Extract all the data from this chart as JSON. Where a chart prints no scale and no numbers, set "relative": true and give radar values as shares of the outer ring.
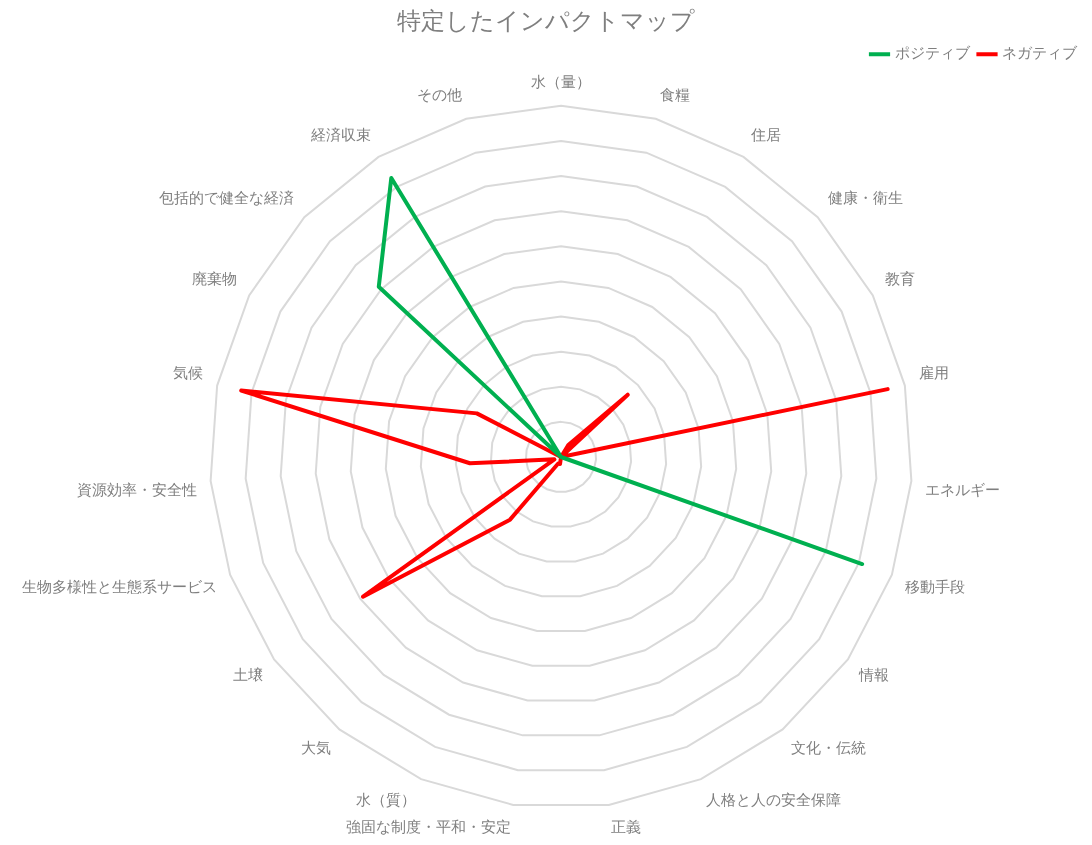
{
  "chart_data": {
    "type": "radar",
    "title": "特定したインパクトマップ",
    "relative": true,
    "legend": "top right",
    "marker": "none",
    "grid": true,
    "categories": [
      "水（量）",
      "食糧",
      "住居",
      "健康・衛生",
      "教育",
      "雇用",
      "エネルギー",
      "移動手段",
      "情報",
      "文化・伝統",
      "人格と人の安全保障",
      "正義",
      "強固な制度・平和・安定",
      "水（質）",
      "大気",
      "土壌",
      "生物多様性と生態系サービス",
      "資源効率・安全性",
      "気候",
      "廃棄物",
      "包括的で健全な経済",
      "経済収束",
      "その他"
    ],
    "series": [
      {
        "name": "ポジティブ",
        "color": "#00b050",
        "values": [
          0,
          0,
          0,
          0,
          0,
          0,
          0,
          0.91,
          0,
          0,
          0,
          0,
          0,
          0,
          0,
          0,
          0,
          0,
          0,
          0,
          0.71,
          0.93,
          0
        ]
      },
      {
        "name": "ネガティブ",
        "color": "#ff0000",
        "values": [
          0,
          0,
          0.04,
          0.26,
          0,
          0.95,
          0,
          0,
          0,
          0,
          0,
          0,
          0.02,
          0.02,
          0.23,
          0.69,
          0.02,
          0.26,
          0.93,
          0.27,
          0,
          0,
          0
        ]
      }
    ]
  }
}
